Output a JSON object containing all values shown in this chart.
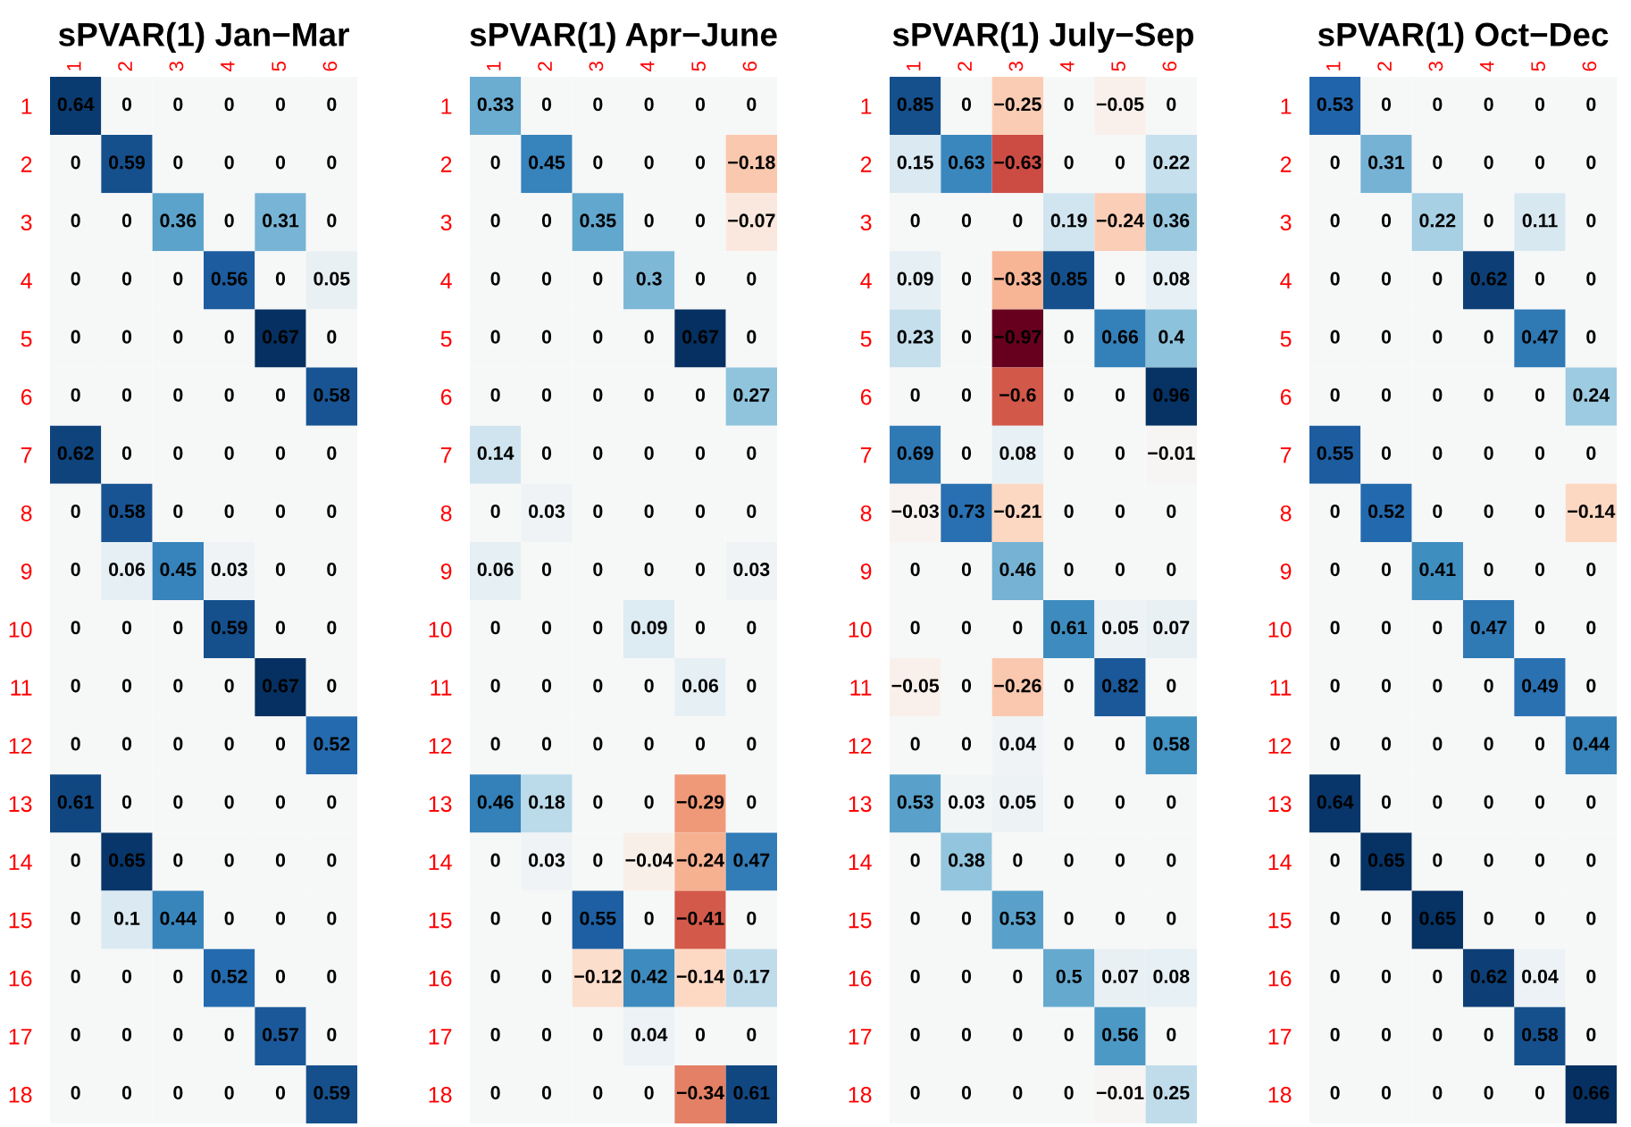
{
  "chart_data": [
    {
      "type": "heatmap",
      "title": "sPVAR(1) Jan−Mar",
      "categories": [
        "1",
        "2",
        "3",
        "4",
        "5",
        "6"
      ],
      "y_categories": [
        "1",
        "2",
        "3",
        "4",
        "5",
        "6",
        "7",
        "8",
        "9",
        "10",
        "11",
        "12",
        "13",
        "14",
        "15",
        "16",
        "17",
        "18"
      ],
      "data_labels": true,
      "cells": [
        [
          0.64,
          0,
          0,
          0,
          0,
          0
        ],
        [
          0,
          0.59,
          0,
          0,
          0,
          0
        ],
        [
          0,
          0,
          0.36,
          0,
          0.31,
          0
        ],
        [
          0,
          0,
          0,
          0.56,
          0,
          0.05
        ],
        [
          0,
          0,
          0,
          0,
          0.67,
          0
        ],
        [
          0,
          0,
          0,
          0,
          0,
          0.58
        ],
        [
          0.62,
          0,
          0,
          0,
          0,
          0
        ],
        [
          0,
          0.58,
          0,
          0,
          0,
          0
        ],
        [
          0,
          0.06,
          0.45,
          0.03,
          0,
          0
        ],
        [
          0,
          0,
          0,
          0.59,
          0,
          0
        ],
        [
          0,
          0,
          0,
          0,
          0.67,
          0
        ],
        [
          0,
          0,
          0,
          0,
          0,
          0.52
        ],
        [
          0.61,
          0,
          0,
          0,
          0,
          0
        ],
        [
          0,
          0.65,
          0,
          0,
          0,
          0
        ],
        [
          0,
          0.1,
          0.44,
          0,
          0,
          0
        ],
        [
          0,
          0,
          0,
          0.52,
          0,
          0
        ],
        [
          0,
          0,
          0,
          0,
          0.57,
          0
        ],
        [
          0,
          0,
          0,
          0,
          0,
          0.59
        ]
      ]
    },
    {
      "type": "heatmap",
      "title": "sPVAR(1) Apr−June",
      "categories": [
        "1",
        "2",
        "3",
        "4",
        "5",
        "6"
      ],
      "y_categories": [
        "1",
        "2",
        "3",
        "4",
        "5",
        "6",
        "7",
        "8",
        "9",
        "10",
        "11",
        "12",
        "13",
        "14",
        "15",
        "16",
        "17",
        "18"
      ],
      "data_labels": true,
      "cells": [
        [
          0.33,
          0,
          0,
          0,
          0,
          0
        ],
        [
          0,
          0.45,
          0,
          0,
          0,
          -0.18
        ],
        [
          0,
          0,
          0.35,
          0,
          0,
          -0.07
        ],
        [
          0,
          0,
          0,
          0.3,
          0,
          0
        ],
        [
          0,
          0,
          0,
          0,
          0.67,
          0
        ],
        [
          0,
          0,
          0,
          0,
          0,
          0.27
        ],
        [
          0.14,
          0,
          0,
          0,
          0,
          0
        ],
        [
          0,
          0.03,
          0,
          0,
          0,
          0
        ],
        [
          0.06,
          0,
          0,
          0,
          0,
          0.03
        ],
        [
          0,
          0,
          0,
          0.09,
          0,
          0
        ],
        [
          0,
          0,
          0,
          0,
          0.06,
          0
        ],
        [
          0,
          0,
          0,
          0,
          0,
          0
        ],
        [
          0.46,
          0.18,
          0,
          0,
          -0.29,
          0
        ],
        [
          0,
          0.03,
          0,
          -0.04,
          -0.24,
          0.47
        ],
        [
          0,
          0,
          0.55,
          0,
          -0.41,
          0
        ],
        [
          0,
          0,
          -0.12,
          0.42,
          -0.14,
          0.17
        ],
        [
          0,
          0,
          0,
          0.04,
          0,
          0
        ],
        [
          0,
          0,
          0,
          0,
          -0.34,
          0.61
        ]
      ]
    },
    {
      "type": "heatmap",
      "title": "sPVAR(1) July−Sep",
      "categories": [
        "1",
        "2",
        "3",
        "4",
        "5",
        "6"
      ],
      "y_categories": [
        "1",
        "2",
        "3",
        "4",
        "5",
        "6",
        "7",
        "8",
        "9",
        "10",
        "11",
        "12",
        "13",
        "14",
        "15",
        "16",
        "17",
        "18"
      ],
      "data_labels": true,
      "cells": [
        [
          0.85,
          0,
          -0.25,
          0,
          -0.05,
          0
        ],
        [
          0.15,
          0.63,
          -0.63,
          0,
          0,
          0.22
        ],
        [
          0,
          0,
          0,
          0.19,
          -0.24,
          0.36
        ],
        [
          0.09,
          0,
          -0.33,
          0.85,
          0,
          0.08
        ],
        [
          0.23,
          0,
          -0.97,
          0,
          0.66,
          0.4
        ],
        [
          0,
          0,
          -0.6,
          0,
          0,
          0.96
        ],
        [
          0.69,
          0,
          0.08,
          0,
          0,
          -0.01
        ],
        [
          -0.03,
          0.73,
          -0.21,
          0,
          0,
          0
        ],
        [
          0,
          0,
          0.46,
          0,
          0,
          0
        ],
        [
          0,
          0,
          0,
          0.61,
          0.05,
          0.07
        ],
        [
          -0.05,
          0,
          -0.26,
          0,
          0.82,
          0
        ],
        [
          0,
          0,
          0.04,
          0,
          0,
          0.58
        ],
        [
          0.53,
          0.03,
          0.05,
          0,
          0,
          0
        ],
        [
          0,
          0.38,
          0,
          0,
          0,
          0
        ],
        [
          0,
          0,
          0.53,
          0,
          0,
          0
        ],
        [
          0,
          0,
          0,
          0.5,
          0.07,
          0.08
        ],
        [
          0,
          0,
          0,
          0,
          0.56,
          0
        ],
        [
          0,
          0,
          0,
          0,
          -0.01,
          0.25
        ]
      ]
    },
    {
      "type": "heatmap",
      "title": "sPVAR(1) Oct−Dec",
      "categories": [
        "1",
        "2",
        "3",
        "4",
        "5",
        "6"
      ],
      "y_categories": [
        "1",
        "2",
        "3",
        "4",
        "5",
        "6",
        "7",
        "8",
        "9",
        "10",
        "11",
        "12",
        "13",
        "14",
        "15",
        "16",
        "17",
        "18"
      ],
      "data_labels": true,
      "cells": [
        [
          0.53,
          0,
          0,
          0,
          0,
          0
        ],
        [
          0,
          0.31,
          0,
          0,
          0,
          0
        ],
        [
          0,
          0,
          0.22,
          0,
          0.11,
          0
        ],
        [
          0,
          0,
          0,
          0.62,
          0,
          0
        ],
        [
          0,
          0,
          0,
          0,
          0.47,
          0
        ],
        [
          0,
          0,
          0,
          0,
          0,
          0.24
        ],
        [
          0.55,
          0,
          0,
          0,
          0,
          0
        ],
        [
          0,
          0.52,
          0,
          0,
          0,
          -0.14
        ],
        [
          0,
          0,
          0.41,
          0,
          0,
          0
        ],
        [
          0,
          0,
          0,
          0.47,
          0,
          0
        ],
        [
          0,
          0,
          0,
          0,
          0.49,
          0
        ],
        [
          0,
          0,
          0,
          0,
          0,
          0.44
        ],
        [
          0.64,
          0,
          0,
          0,
          0,
          0
        ],
        [
          0,
          0.65,
          0,
          0,
          0,
          0
        ],
        [
          0,
          0,
          0.65,
          0,
          0,
          0
        ],
        [
          0,
          0,
          0,
          0.62,
          0.04,
          0
        ],
        [
          0,
          0,
          0,
          0,
          0.58,
          0
        ],
        [
          0,
          0,
          0,
          0,
          0,
          0.66
        ]
      ]
    }
  ]
}
